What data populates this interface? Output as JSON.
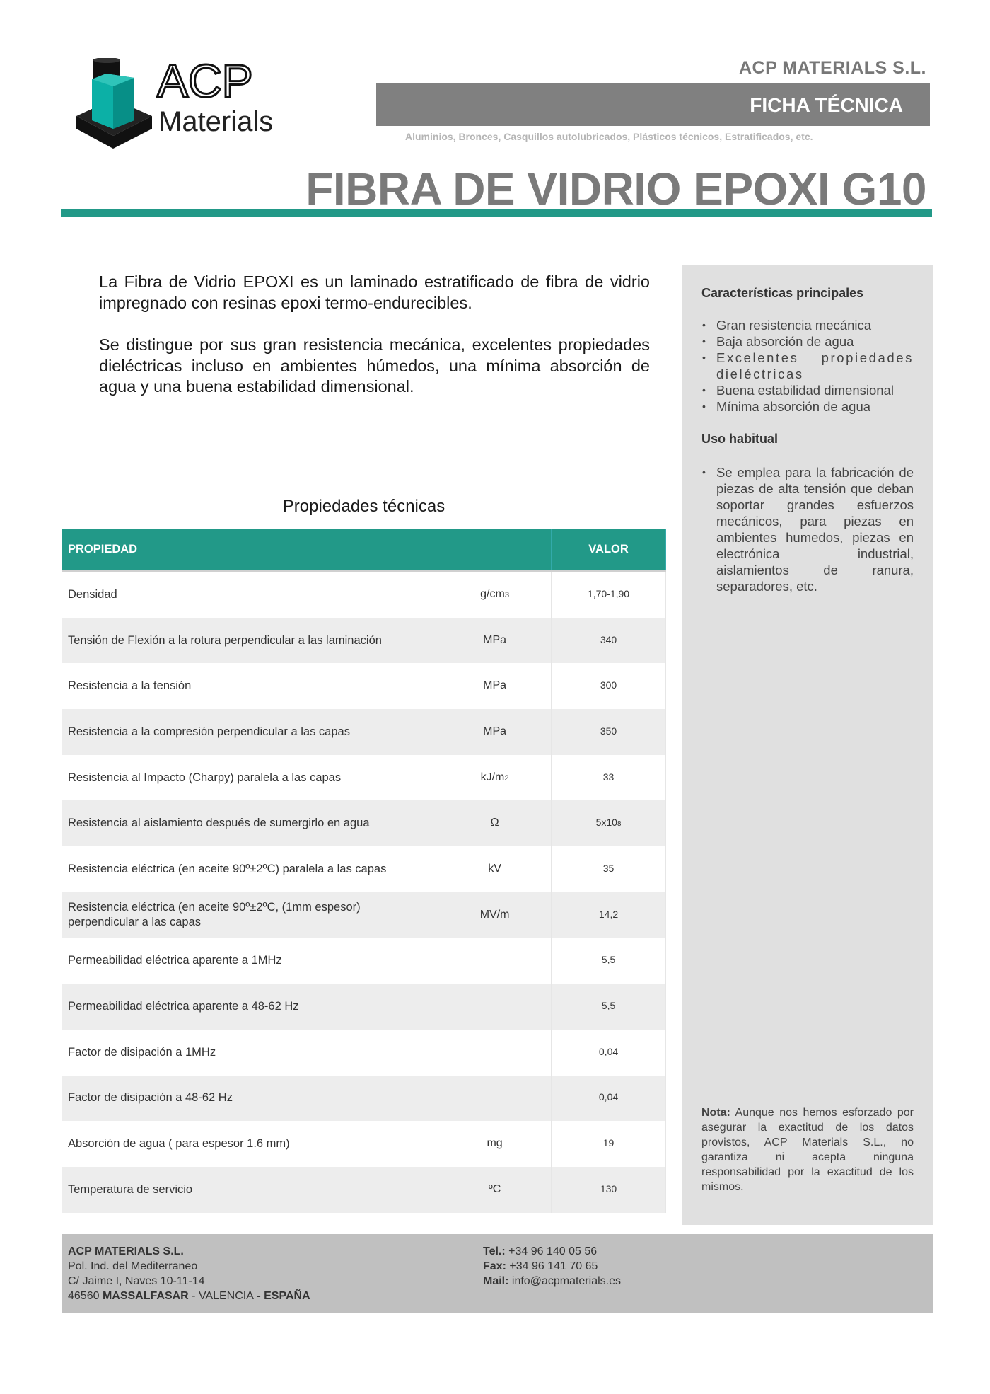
{
  "logo": {
    "line1": "ACP",
    "line2": "Materials",
    "colors": {
      "teal": "#0aa39a",
      "black": "#111111"
    }
  },
  "header": {
    "company": "ACP MATERIALS S.L.",
    "doc_type": "FICHA TÉCNICA",
    "tagline": "Aluminios, Bronces, Casquillos autolubricados, Plásticos técnicos, Estratificados, etc.",
    "title": "FIBRA DE VIDRIO EPOXI G10"
  },
  "colors": {
    "accent": "#229988",
    "title_gray": "#7a7a7a",
    "sidebar_bg": "#e0e0e0",
    "footer_bg": "#c0c0c0"
  },
  "intro": [
    "La Fibra de Vidrio EPOXI es un laminado estratificado de fibra de vidrio impregnado con resinas epoxi termo-endurecibles.",
    "Se distingue por sus gran resistencia mecánica, excelentes propiedades dieléctricas incluso en ambientes húmedos, una mínima absorción de agua y una buena estabilidad dimensional."
  ],
  "sidebar": {
    "features_title": "Características principales",
    "features": [
      "Gran resistencia mecánica",
      "Baja absorción de agua",
      "Excelentes propiedades dieléctricas",
      "Buena estabilidad dimensional",
      "Mínima absorción de agua"
    ],
    "usage_title": "Uso habitual",
    "usage": [
      "Se emplea para la fabricación de piezas de alta tensión que deban soportar grandes esfuerzos mecánicos, para piezas en ambientes humedos, piezas en electrónica industrial, aislamientos de ranura, separadores, etc."
    ],
    "note_label": "Nota:",
    "note": "Aunque nos hemos esforzado por asegurar la exactitud de los datos provistos, ACP Materials S.L., no garantiza ni acepta ninguna responsabilidad por la exactitud de los mismos."
  },
  "table": {
    "title": "Propiedades técnicas",
    "headers": [
      "PROPIEDAD",
      "",
      "VALOR"
    ],
    "rows": [
      {
        "property": "Densidad",
        "unit": "g/cm",
        "unit_sub": "3",
        "value": "1,70-1,90",
        "value_sub": ""
      },
      {
        "property": "Tensión de Flexión a la rotura perpendicular a las laminación",
        "unit": "MPa",
        "unit_sub": "",
        "value": "340",
        "value_sub": ""
      },
      {
        "property": "Resistencia a la tensión",
        "unit": "MPa",
        "unit_sub": "",
        "value": "300",
        "value_sub": ""
      },
      {
        "property": "Resistencia a la compresión perpendicular a las capas",
        "unit": "MPa",
        "unit_sub": "",
        "value": "350",
        "value_sub": ""
      },
      {
        "property": "Resistencia al Impacto (Charpy) paralela a las capas",
        "unit": "kJ/m",
        "unit_sub": "2",
        "value": "33",
        "value_sub": ""
      },
      {
        "property": "Resistencia al aislamiento después de sumergirlo en agua",
        "unit": "Ω",
        "unit_sub": "",
        "value": "5x10",
        "value_sub": "8"
      },
      {
        "property": "Resistencia eléctrica (en aceite 90º±2ºC) paralela a las capas",
        "unit": "kV",
        "unit_sub": "",
        "value": "35",
        "value_sub": ""
      },
      {
        "property": "Resistencia eléctrica (en aceite 90º±2ºC, (1mm espesor) perpendicular a las capas",
        "unit": "MV/m",
        "unit_sub": "",
        "value": "14,2",
        "value_sub": ""
      },
      {
        "property": "Permeabilidad eléctrica aparente a 1MHz",
        "unit": "",
        "unit_sub": "",
        "value": "5,5",
        "value_sub": ""
      },
      {
        "property": "Permeabilidad eléctrica aparente a 48-62 Hz",
        "unit": "",
        "unit_sub": "",
        "value": "5,5",
        "value_sub": ""
      },
      {
        "property": "Factor de disipación a 1MHz",
        "unit": "",
        "unit_sub": "",
        "value": "0,04",
        "value_sub": ""
      },
      {
        "property": "Factor de disipación a 48-62 Hz",
        "unit": "",
        "unit_sub": "",
        "value": "0,04",
        "value_sub": ""
      },
      {
        "property": "Absorción de agua ( para espesor 1.6 mm)",
        "unit": "mg",
        "unit_sub": "",
        "value": "19",
        "value_sub": ""
      },
      {
        "property": "Temperatura de servicio",
        "unit": "ºC",
        "unit_sub": "",
        "value": "130",
        "value_sub": ""
      }
    ]
  },
  "footer": {
    "company": "ACP MATERIALS S.L.",
    "address1": "Pol. Ind. del Mediterraneo",
    "address2": "C/ Jaime I, Naves 10-11-14",
    "postcode": "46560",
    "town": "MASSALFASAR",
    "sep1": " - ",
    "province": "VALENCIA",
    "sep2": " - ",
    "country": "ESPAÑA",
    "tel_label": "Tel.:",
    "tel": " +34 96 140 05 56",
    "fax_label": "Fax:",
    "fax": " +34 96 141 70 65",
    "mail_label": "Mail:",
    "mail": " info@acpmaterials.es"
  }
}
